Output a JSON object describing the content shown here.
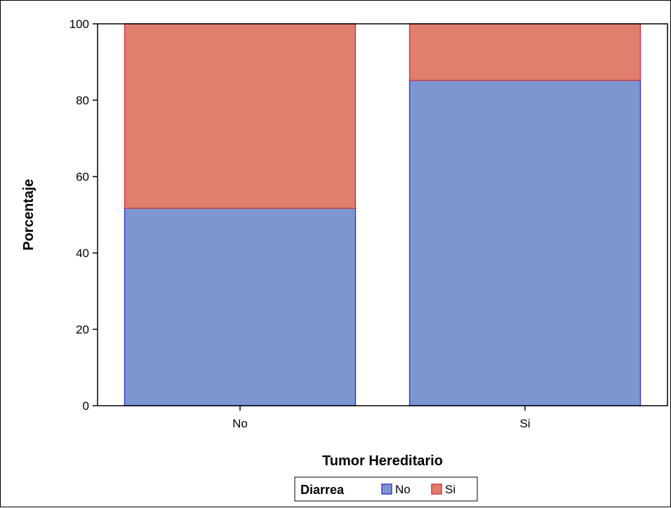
{
  "chart_data": {
    "type": "bar",
    "stacked": true,
    "categories": [
      "No",
      "Si"
    ],
    "series": [
      {
        "name": "No",
        "values": [
          51.7,
          85.2
        ],
        "color": "#7e96cf",
        "stroke": "#3d3dc8"
      },
      {
        "name": "Si",
        "values": [
          48.3,
          14.8
        ],
        "color": "#e07f6e",
        "stroke": "#c83c4b"
      }
    ],
    "xlabel": "Tumor Hereditario",
    "ylabel": "Porcentaje",
    "ylim": [
      0,
      100
    ],
    "yticks": [
      0,
      20,
      40,
      60,
      80,
      100
    ],
    "legend": {
      "title": "Diarrea",
      "position": "bottom"
    },
    "grid": false
  }
}
